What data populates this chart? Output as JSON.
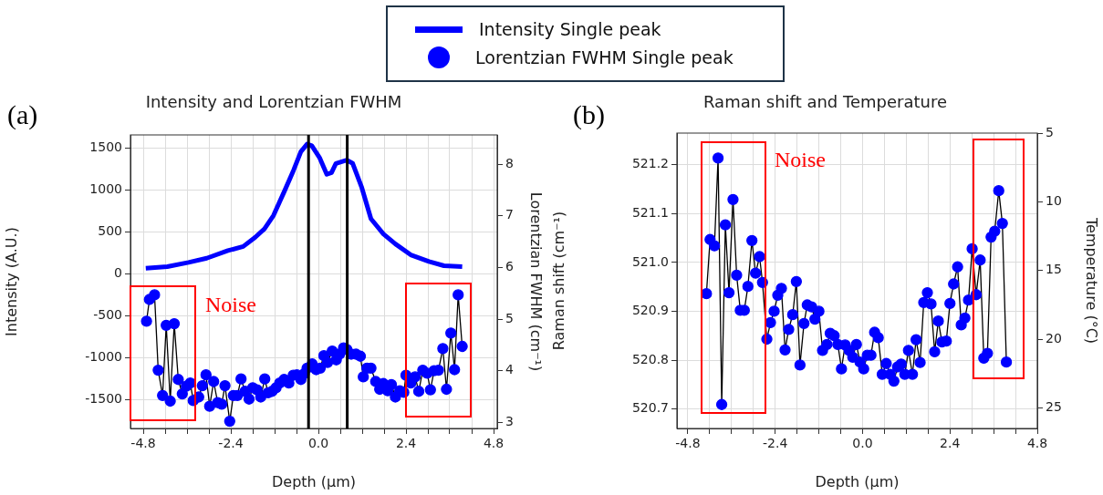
{
  "chart_data": [
    {
      "type": "line",
      "title": "Intensity and Lorentzian FWHM",
      "xlabel": "Depth (μm)",
      "ylabel": "Intensity (A.U.)",
      "y2label": "Lorentzian FWHM (cm⁻¹)",
      "legend": "top",
      "grid": true,
      "xlim": [
        -5.15,
        4.9
      ],
      "ylim": [
        -1840,
        1660
      ],
      "y2lim": [
        2.88,
        8.57
      ],
      "xticks": [
        {
          "value": -4.8,
          "label": "-4.8"
        },
        {
          "value": -4.2,
          "label": null
        },
        {
          "value": -3.6,
          "label": null
        },
        {
          "value": -3.0,
          "label": null
        },
        {
          "value": -2.4,
          "label": "-2.4"
        },
        {
          "value": -1.8,
          "label": null
        },
        {
          "value": -1.2,
          "label": null
        },
        {
          "value": -0.6,
          "label": null
        },
        {
          "value": 0,
          "label": "0.0"
        },
        {
          "value": 0.6,
          "label": null
        },
        {
          "value": 1.2,
          "label": null
        },
        {
          "value": 1.8,
          "label": null
        },
        {
          "value": 2.4,
          "label": "2.4"
        },
        {
          "value": 3.0,
          "label": null
        },
        {
          "value": 3.6,
          "label": null
        },
        {
          "value": 4.2,
          "label": null
        },
        {
          "value": 4.8,
          "label": "4.8"
        }
      ],
      "yticks": [
        -1500,
        -1000,
        -500,
        0,
        500,
        1000,
        1500
      ],
      "y2ticks": [
        3,
        4,
        5,
        6,
        7,
        8
      ],
      "ref_lines": [
        {
          "axis": "x",
          "value": -0.27,
          "color": "#000000"
        },
        {
          "axis": "x",
          "value": 0.79,
          "color": "#000000"
        }
      ],
      "annotations": [
        "(a)",
        "Noise"
      ],
      "series": [
        {
          "name": "Intensity Single peak",
          "color": "#0000ff",
          "marker": "none",
          "x": [
            -4.73,
            -4.14,
            -3.56,
            -3.06,
            -2.48,
            -2.06,
            -1.73,
            -1.48,
            -1.23,
            -0.93,
            -0.68,
            -0.48,
            -0.31,
            -0.18,
            0.03,
            0.23,
            0.36,
            0.48,
            0.78,
            0.94,
            1.19,
            1.44,
            1.78,
            2.11,
            2.53,
            3.03,
            3.44,
            3.94
          ],
          "values": [
            70,
            90,
            140,
            190,
            280,
            330,
            440,
            540,
            700,
            990,
            1240,
            1460,
            1550,
            1530,
            1390,
            1190,
            1210,
            1320,
            1360,
            1320,
            1030,
            660,
            480,
            360,
            230,
            150,
            100,
            90
          ]
        },
        {
          "name": "Lorentzian FWHM Single peak",
          "color": "#0000ff",
          "marker": "circle",
          "axis": "y2",
          "x": [
            -4.71,
            -4.63,
            -4.49,
            -4.39,
            -4.27,
            -4.17,
            -4.06,
            -3.95,
            -3.84,
            -3.73,
            -3.62,
            -3.51,
            -3.43,
            -3.28,
            -3.18,
            -3.08,
            -2.98,
            -2.87,
            -2.76,
            -2.65,
            -2.56,
            -2.43,
            -2.33,
            -2.22,
            -2.12,
            -2.01,
            -1.9,
            -1.8,
            -1.68,
            -1.58,
            -1.47,
            -1.38,
            -1.27,
            -1.16,
            -1.06,
            -0.94,
            -0.81,
            -0.69,
            -0.59,
            -0.48,
            -0.39,
            -0.31,
            -0.17,
            -0.06,
            0.05,
            0.15,
            0.25,
            0.38,
            0.49,
            0.58,
            0.69,
            0.78,
            0.9,
            1.03,
            1.15,
            1.23,
            1.33,
            1.44,
            1.57,
            1.68,
            1.78,
            1.9,
            2.0,
            2.11,
            2.23,
            2.34,
            2.4,
            2.53,
            2.65,
            2.75,
            2.86,
            2.98,
            3.07,
            3.17,
            3.29,
            3.41,
            3.51,
            3.63,
            3.73,
            3.83,
            3.94
          ],
          "values": [
            4.96,
            5.38,
            5.47,
            4.01,
            3.52,
            4.88,
            3.41,
            4.91,
            3.83,
            3.55,
            3.7,
            3.76,
            3.42,
            3.49,
            3.71,
            3.92,
            3.31,
            3.79,
            3.38,
            3.35,
            3.71,
            3.02,
            3.52,
            3.52,
            3.84,
            3.6,
            3.45,
            3.67,
            3.63,
            3.49,
            3.84,
            3.57,
            3.6,
            3.67,
            3.76,
            3.83,
            3.76,
            3.91,
            3.92,
            3.83,
            3.94,
            4.05,
            4.13,
            4.02,
            4.05,
            4.29,
            4.16,
            4.38,
            4.21,
            4.32,
            4.44,
            4.41,
            4.32,
            4.32,
            4.28,
            3.88,
            4.05,
            4.05,
            3.79,
            3.64,
            3.75,
            3.61,
            3.73,
            3.49,
            3.61,
            3.58,
            3.91,
            3.76,
            3.88,
            3.6,
            4.01,
            3.95,
            3.63,
            4.0,
            4.01,
            4.43,
            3.64,
            4.73,
            4.02,
            5.47,
            4.47
          ]
        }
      ]
    },
    {
      "type": "line",
      "title": "Raman shift and Temperature",
      "xlabel": "Depth (μm)",
      "ylabel": "Raman shift (cm⁻¹)",
      "y2label": "Temperature (°C)",
      "grid": true,
      "xlim": [
        -5.1,
        4.8
      ],
      "ylim": [
        520.66,
        521.265
      ],
      "y2lim": [
        26.5,
        5
      ],
      "xticks": [
        {
          "value": -4.8,
          "label": "-4.8"
        },
        {
          "value": -4.2,
          "label": null
        },
        {
          "value": -3.6,
          "label": null
        },
        {
          "value": -3.0,
          "label": null
        },
        {
          "value": -2.4,
          "label": "-2.4"
        },
        {
          "value": -1.8,
          "label": null
        },
        {
          "value": -1.2,
          "label": null
        },
        {
          "value": -0.6,
          "label": null
        },
        {
          "value": 0,
          "label": "0.0"
        },
        {
          "value": 0.6,
          "label": null
        },
        {
          "value": 1.2,
          "label": null
        },
        {
          "value": 1.8,
          "label": null
        },
        {
          "value": 2.4,
          "label": "2.4"
        },
        {
          "value": 3.0,
          "label": null
        },
        {
          "value": 3.6,
          "label": null
        },
        {
          "value": 4.2,
          "label": null
        },
        {
          "value": 4.8,
          "label": "4.8"
        }
      ],
      "yticks": [
        520.7,
        520.8,
        520.9,
        {
          "value": 521,
          "label": "521.0"
        },
        521.1,
        521.2
      ],
      "y2ticks": [
        5,
        10,
        15,
        20,
        25
      ],
      "annotations": [
        "(b)",
        "Noise"
      ],
      "series": [
        {
          "color": "#0000ff",
          "marker": "circle",
          "x": [
            -4.29,
            -4.19,
            -4.07,
            -3.97,
            -3.87,
            -3.77,
            -3.67,
            -3.56,
            -3.46,
            -3.36,
            -3.25,
            -3.15,
            -3.04,
            -2.94,
            -2.83,
            -2.75,
            -2.63,
            -2.53,
            -2.43,
            -2.33,
            -2.23,
            -2.13,
            -2.03,
            -1.92,
            -1.82,
            -1.72,
            -1.61,
            -1.52,
            -1.4,
            -1.31,
            -1.2,
            -1.1,
            -0.98,
            -0.89,
            -0.78,
            -0.68,
            -0.58,
            -0.48,
            -0.37,
            -0.27,
            -0.17,
            -0.07,
            0.03,
            0.13,
            0.23,
            0.33,
            0.43,
            0.54,
            0.65,
            0.76,
            0.86,
            0.96,
            1.06,
            1.16,
            1.26,
            1.37,
            1.47,
            1.58,
            1.68,
            1.78,
            1.88,
            1.98,
            2.08,
            2.18,
            2.3,
            2.4,
            2.5,
            2.61,
            2.71,
            2.81,
            2.91,
            3.01,
            3.12,
            3.23,
            3.33,
            3.43,
            3.53,
            3.63,
            3.74,
            3.84,
            3.95
          ],
          "values": [
            520.936,
            521.047,
            521.034,
            521.214,
            520.709,
            521.077,
            520.938,
            521.129,
            520.974,
            520.902,
            520.902,
            520.951,
            521.045,
            520.978,
            521.012,
            520.959,
            520.843,
            520.877,
            520.9,
            520.933,
            520.947,
            520.821,
            520.863,
            520.893,
            520.961,
            520.79,
            520.875,
            520.913,
            520.909,
            520.884,
            520.9,
            520.82,
            520.832,
            520.855,
            520.85,
            520.832,
            520.782,
            520.831,
            520.82,
            520.806,
            520.832,
            520.796,
            520.782,
            520.81,
            520.81,
            520.857,
            520.846,
            520.771,
            520.793,
            520.771,
            520.757,
            520.786,
            520.792,
            520.771,
            520.82,
            520.771,
            520.842,
            520.795,
            520.918,
            520.938,
            520.915,
            520.817,
            520.88,
            520.837,
            520.839,
            520.916,
            520.956,
            520.991,
            520.872,
            520.886,
            520.923,
            521.028,
            520.934,
            521.005,
            520.804,
            520.814,
            521.052,
            521.064,
            521.147,
            521.08,
            520.796
          ]
        }
      ]
    }
  ]
}
